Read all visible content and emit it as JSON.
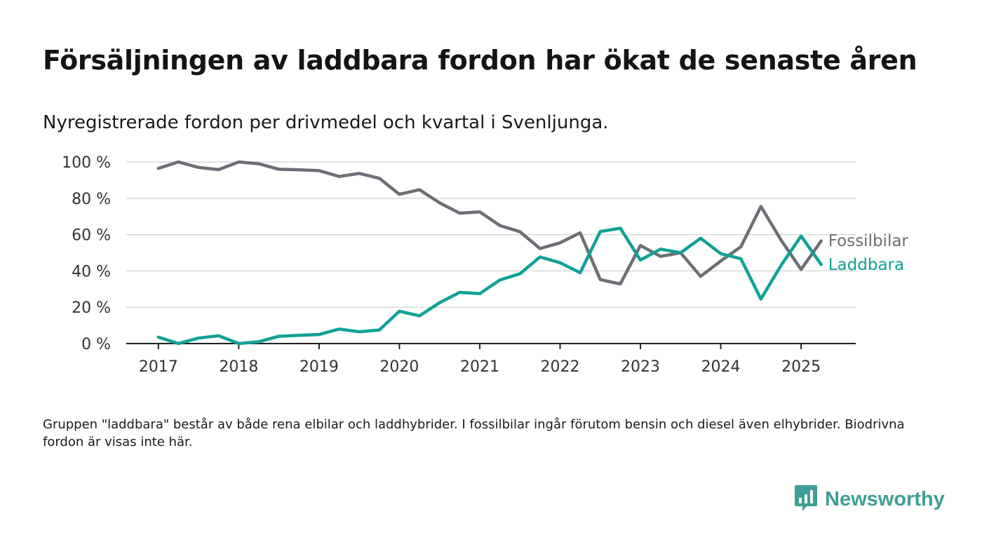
{
  "title": "Försäljningen av laddbara fordon har ökat de senaste åren",
  "subtitle": "Nyregistrerade fordon per drivmedel och kvartal i Svenljunga.",
  "note": "Gruppen \"laddbara\" består av både rena elbilar och laddhybrider. I fossilbilar ingår förutom bensin och diesel även elhybrider. Biodrivna fordon är visas inte här.",
  "brand": {
    "name": "Newsworthy",
    "icon": "chart-bubble-icon",
    "color": "#3f9e95"
  },
  "chart_data": {
    "type": "line",
    "x": [
      2017.0,
      2017.25,
      2017.5,
      2017.75,
      2018.0,
      2018.25,
      2018.5,
      2018.75,
      2019.0,
      2019.25,
      2019.5,
      2019.75,
      2020.0,
      2020.25,
      2020.5,
      2020.75,
      2021.0,
      2021.25,
      2021.5,
      2021.75,
      2022.0,
      2022.25,
      2022.5,
      2022.75,
      2023.0,
      2023.25,
      2023.5,
      2023.75,
      2024.0,
      2024.25,
      2024.5,
      2024.75,
      2025.0,
      2025.25
    ],
    "series": [
      {
        "name": "Fossilbilar",
        "color": "#6e6e76",
        "values": [
          96.5,
          100,
          97,
          95.8,
          100,
          99,
          96,
          95.7,
          95.2,
          92,
          93.7,
          91,
          82.2,
          84.7,
          77.5,
          71.8,
          72.5,
          65,
          61.6,
          52.3,
          55.5,
          61,
          35.2,
          32.8,
          54,
          48,
          50,
          37,
          45.5,
          53.3,
          75.5,
          57,
          40.8,
          56.5
        ]
      },
      {
        "name": "Laddbara",
        "color": "#11a197",
        "values": [
          3.5,
          0,
          3,
          4.3,
          0,
          1,
          4,
          4.5,
          5,
          8,
          6.5,
          7.5,
          17.8,
          15.3,
          22.5,
          28.2,
          27.5,
          35,
          38.4,
          47.7,
          44.5,
          39,
          61.7,
          63.5,
          46,
          52,
          50,
          58,
          49.5,
          46.7,
          24.5,
          43,
          59.2,
          43.5
        ]
      }
    ],
    "xticks": [
      "2017",
      "2018",
      "2019",
      "2020",
      "2021",
      "2022",
      "2023",
      "2024",
      "2025"
    ],
    "yticks": [
      "0 %",
      "20 %",
      "40 %",
      "60 %",
      "80 %",
      "100 %"
    ],
    "ylim": [
      0,
      100
    ],
    "xlim": [
      2016.6,
      2025.68
    ],
    "grid": true,
    "legend": "right-end-labels"
  }
}
